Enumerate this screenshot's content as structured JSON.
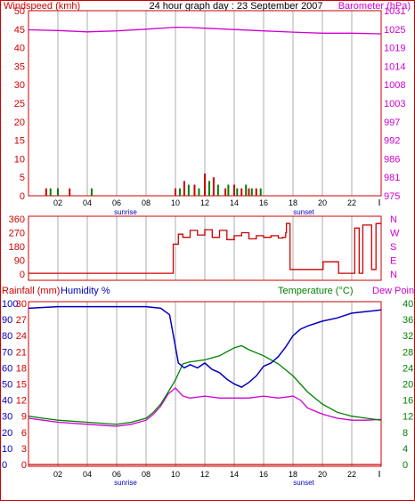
{
  "title": "24 hour graph day : 23 September 2007",
  "colors": {
    "wind_text": "#d00000",
    "baro_text": "#d000d0",
    "humidity_text": "#0000c0",
    "temp_text": "#008000",
    "frame": "#cc0000",
    "grid": "#c8c8c8",
    "wind_bar_speed": "#cc0000",
    "wind_bar_gust": "#008000",
    "baro_line": "#d000d0",
    "dir_line": "#cc0000",
    "humidity_line": "#0000c0",
    "temp_line": "#008000",
    "dew_line": "#d000d0",
    "rain_line": "#cc0000",
    "label_black": "#000000"
  },
  "chart_data": [
    {
      "type": "bar",
      "name": "wind-baro",
      "title": "24 hour graph day : 23 September 2007",
      "ylabel_left": "Windspeed (kmh)",
      "ylabel_right": "Barometer (hPa)",
      "left_ticks": [
        "0",
        "5",
        "10",
        "15",
        "20",
        "25",
        "30",
        "35",
        "40",
        "45",
        "50"
      ],
      "right_ticks": [
        "975",
        "981",
        "986",
        "992",
        "997",
        "1003",
        "1008",
        "1014",
        "1019",
        "1025",
        "1031"
      ],
      "x_ticks": [
        "02",
        "04",
        "06",
        "08",
        "10",
        "12",
        "14",
        "16",
        "18",
        "20",
        "22"
      ],
      "x_sub_labels": {
        "sunrise": "sunrise",
        "sunset": "sunset"
      },
      "ylim_left": [
        0,
        50
      ],
      "ylim_right": [
        975,
        1031
      ],
      "x_range_hours": [
        0,
        24
      ],
      "barometer": {
        "x": [
          0,
          2,
          4,
          6,
          8,
          10,
          11,
          12,
          14,
          16,
          18,
          20,
          22,
          24
        ],
        "y": [
          1025.2,
          1025.0,
          1024.6,
          1024.9,
          1025.4,
          1026.0,
          1025.9,
          1025.7,
          1025.3,
          1024.9,
          1024.5,
          1024.2,
          1024.2,
          1024.0
        ]
      },
      "wind_speed_bars": {
        "x": [
          1.2,
          2.8,
          10.0,
          10.6,
          11.3,
          12.0,
          12.6,
          13.4,
          14.0,
          14.5,
          15.0,
          15.5
        ],
        "y": [
          2,
          2,
          2,
          4,
          3,
          6,
          5,
          2,
          3,
          2,
          2,
          2
        ]
      },
      "wind_gust_bars": {
        "x": [
          1.5,
          2.0,
          4.3,
          10.3,
          10.9,
          11.6,
          12.3,
          12.9,
          13.6,
          14.2,
          14.8,
          15.2,
          15.8
        ],
        "y": [
          2,
          2,
          2,
          2,
          3,
          2,
          4,
          3,
          3,
          2,
          3,
          2,
          2
        ]
      }
    },
    {
      "type": "line",
      "name": "wind-direction",
      "left_ticks": [
        "0",
        "90",
        "180",
        "270",
        "360"
      ],
      "right_ticks": [
        "N",
        "E",
        "S",
        "W",
        "N"
      ],
      "ylim": [
        0,
        360
      ],
      "direction": {
        "x": [
          0,
          9.8,
          9.85,
          10.2,
          10.5,
          11,
          11.5,
          12,
          12.5,
          13,
          13.5,
          14,
          14.5,
          15,
          15.5,
          16,
          16.5,
          17,
          17.3,
          17.5,
          17.55,
          17.7,
          17.8,
          19,
          20,
          20.05,
          21,
          21.1,
          21.3,
          21.4,
          22,
          22.2,
          22.4,
          22.5,
          22.7,
          22.75,
          23.3,
          23.35,
          23.6,
          23.65,
          24
        ],
        "y": [
          5,
          5,
          195,
          260,
          240,
          285,
          255,
          290,
          240,
          285,
          225,
          250,
          270,
          230,
          250,
          240,
          250,
          235,
          240,
          270,
          330,
          330,
          30,
          30,
          30,
          80,
          80,
          5,
          5,
          5,
          5,
          300,
          300,
          5,
          5,
          320,
          320,
          30,
          30,
          330,
          330
        ]
      }
    },
    {
      "type": "line",
      "name": "humidity-temperature",
      "ylabel_left_1": "Rainfall (mm)",
      "ylabel_left_2": "Humidity %",
      "ylabel_right_1": "Temperature (°C)",
      "ylabel_right_2": "Dew Point",
      "humidity_ticks": [
        "0",
        "10",
        "20",
        "30",
        "40",
        "50",
        "60",
        "70",
        "80",
        "90",
        "100"
      ],
      "rain_ticks": [
        "0",
        "3",
        "6",
        "9",
        "12",
        "15",
        "18",
        "21",
        "24",
        "27",
        "30"
      ],
      "temp_ticks": [
        "0",
        "4",
        "8",
        "12",
        "16",
        "20",
        "24",
        "28",
        "32",
        "36",
        "40"
      ],
      "x_ticks": [
        "02",
        "04",
        "06",
        "08",
        "10",
        "12",
        "14",
        "16",
        "18",
        "20",
        "22"
      ],
      "x_sub_labels": {
        "sunrise": "sunrise",
        "sunset": "sunset"
      },
      "ylim_humidity": [
        0,
        100
      ],
      "ylim_temp": [
        0,
        40
      ],
      "ylim_rain": [
        0,
        30
      ],
      "humidity": {
        "x": [
          0,
          2,
          4,
          6,
          8,
          9,
          9.6,
          9.9,
          10.2,
          10.6,
          11,
          11.5,
          12,
          12.5,
          13,
          13.5,
          14,
          14.5,
          15,
          15.5,
          16,
          16.5,
          17,
          17.5,
          18,
          18.5,
          19,
          20,
          21,
          22,
          23,
          24
        ],
        "y": [
          97,
          98,
          98,
          98,
          98,
          97,
          93,
          78,
          63,
          60,
          62,
          60,
          63,
          59,
          57,
          53,
          50,
          48,
          51,
          55,
          61,
          63,
          67,
          73,
          80,
          84,
          86,
          89,
          91,
          94,
          95,
          96
        ]
      },
      "temperature": {
        "x": [
          0,
          1,
          2,
          4,
          6,
          7,
          8,
          8.5,
          9,
          9.5,
          10,
          10.5,
          11,
          12,
          13,
          14,
          14.5,
          15,
          16,
          17,
          18,
          19,
          20,
          21,
          22,
          23,
          24
        ],
        "y": [
          12,
          11.5,
          11,
          10.5,
          10,
          10.5,
          11.5,
          13,
          15,
          18,
          21,
          25,
          25.5,
          26,
          27,
          29,
          29.5,
          28.5,
          27,
          25,
          22,
          18,
          15,
          13,
          12,
          11.5,
          11
        ]
      },
      "dew_point": {
        "x": [
          0,
          1,
          2,
          4,
          6,
          7,
          8,
          8.5,
          9,
          9.5,
          10,
          10.5,
          11,
          12,
          13,
          14,
          15,
          16,
          17,
          18,
          18.5,
          19,
          20,
          21,
          22,
          23,
          24
        ],
        "y": [
          11.5,
          11,
          10.5,
          10,
          9.5,
          10,
          11,
          12.5,
          14.5,
          17.5,
          19,
          17,
          16.5,
          17,
          16.5,
          16.5,
          16.5,
          17,
          16.5,
          17,
          16,
          14,
          12.5,
          11.5,
          11,
          11,
          11.2
        ]
      },
      "rainfall": {
        "x": [
          0,
          24
        ],
        "y": [
          0,
          0
        ]
      }
    }
  ]
}
